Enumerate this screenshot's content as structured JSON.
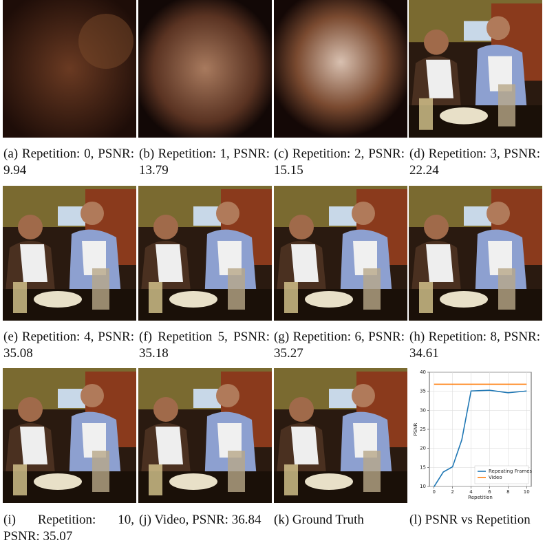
{
  "figure": {
    "panels": [
      {
        "caption": "(a) Repetition: 0, PSNR: 9.94"
      },
      {
        "caption": "(b) Repetition: 1, PSNR: 13.79"
      },
      {
        "caption": "(c) Repetition: 2, PSNR: 15.15"
      },
      {
        "caption": "(d) Repetition: 3, PSNR: 22.24"
      },
      {
        "caption": "(e) Repetition: 4, PSNR: 35.08"
      },
      {
        "caption": "(f) Repetition 5, PSNR: 35.18"
      },
      {
        "caption": "(g) Repetition: 6, PSNR: 35.27"
      },
      {
        "caption": "(h) Repetition: 8, PSNR: 34.61"
      },
      {
        "caption": "(i) Repetition: 10, PSNR: 35.07"
      },
      {
        "caption": "(j) Video, PSNR: 36.84"
      },
      {
        "caption": "(k) Ground Truth"
      },
      {
        "caption": "(l) PSNR vs Repetition"
      }
    ]
  },
  "chart_data": {
    "type": "line",
    "xlabel": "Repetition",
    "ylabel": "PSNR",
    "series": [
      {
        "name": "Repeating Frames",
        "color": "#1f77b4",
        "x": [
          0,
          1,
          2,
          3,
          4,
          5,
          6,
          8,
          10
        ],
        "values": [
          9.94,
          13.79,
          15.15,
          22.24,
          35.08,
          35.18,
          35.27,
          34.61,
          35.07
        ]
      },
      {
        "name": "Video",
        "color": "#ff7f0e",
        "x": [
          0,
          10
        ],
        "values": [
          36.84,
          36.84
        ]
      }
    ],
    "xlim": [
      -0.5,
      10.5
    ],
    "xticks": [
      0,
      2,
      4,
      6,
      8,
      10
    ],
    "ylim": [
      10,
      40
    ],
    "yticks": [
      10,
      15,
      20,
      25,
      30,
      35,
      40
    ],
    "grid": true,
    "legend": "lower right"
  }
}
